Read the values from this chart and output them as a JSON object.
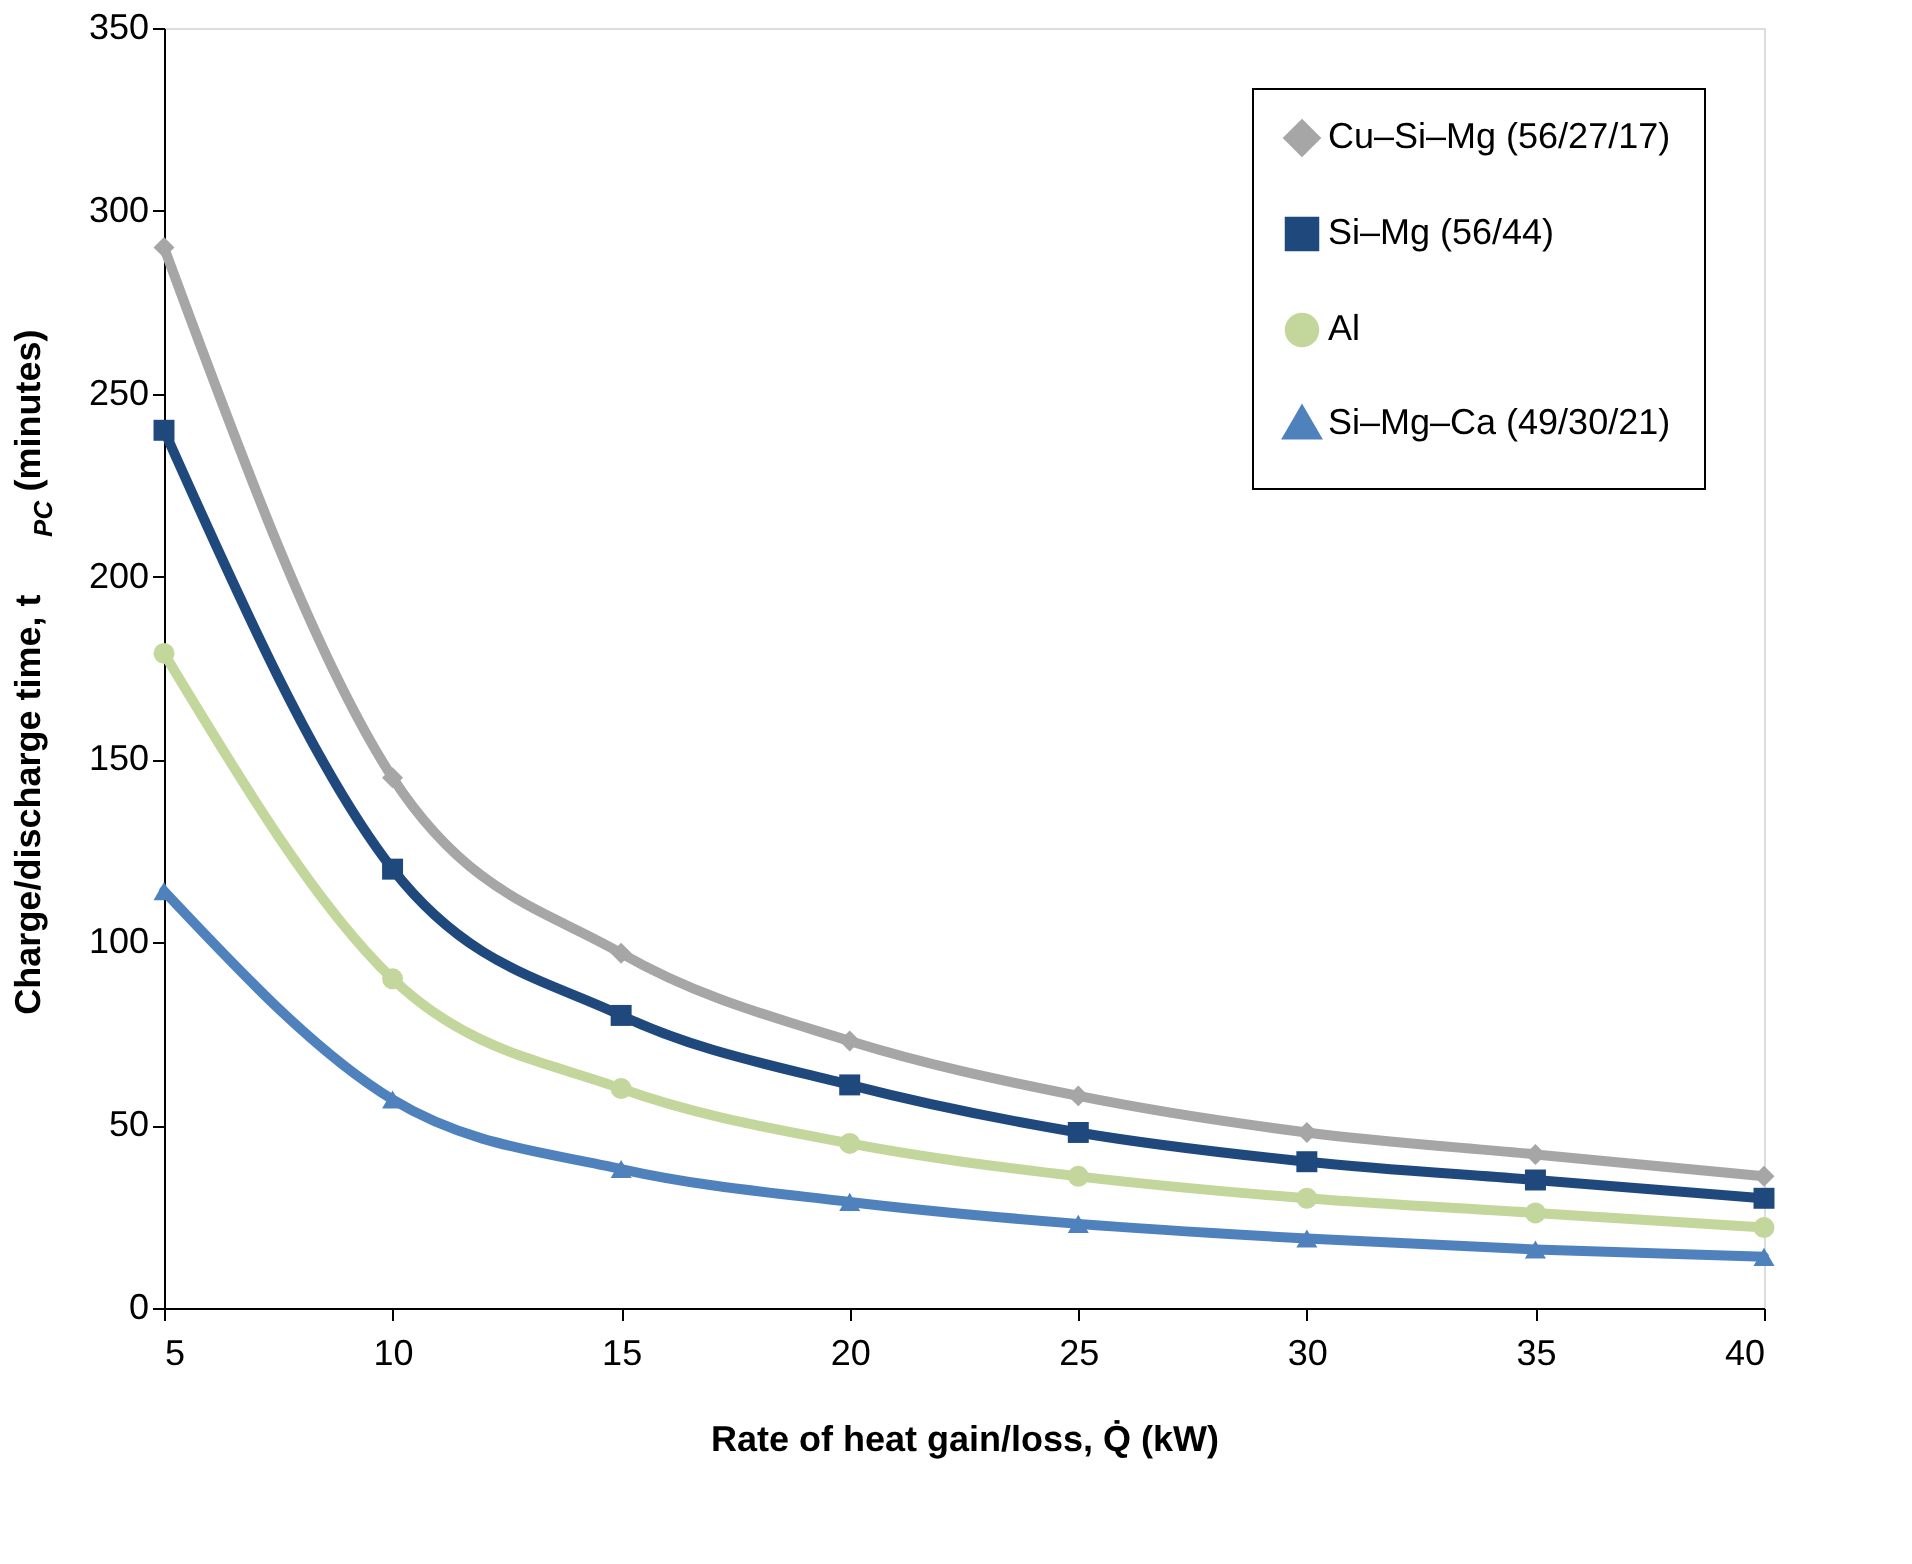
{
  "chart_data": {
    "type": "line",
    "xlabel": "Rate of heat gain/loss,  Q̇  (kW)",
    "ylabel": "Charge/discharge  time, t$_{PC}$ (minutes)",
    "x": [
      5,
      10,
      15,
      20,
      25,
      30,
      35,
      40
    ],
    "series": [
      {
        "name": "Cu–Si–Mg (56/27/17)",
        "color": "#a6a6a6",
        "marker": "diamond",
        "values": [
          290,
          145,
          97,
          73,
          58,
          48,
          42,
          36
        ]
      },
      {
        "name": "Si–Mg (56/44)",
        "color": "#1f497d",
        "marker": "square",
        "values": [
          240,
          120,
          80,
          61,
          48,
          40,
          35,
          30
        ]
      },
      {
        "name": "Al",
        "color": "#c3d69b",
        "marker": "circle",
        "values": [
          179,
          90,
          60,
          45,
          36,
          30,
          26,
          22
        ]
      },
      {
        "name": "Si–Mg–Ca (49/30/21)",
        "color": "#4f81bd",
        "marker": "triangle",
        "values": [
          114,
          57,
          38,
          29,
          23,
          19,
          16,
          14
        ]
      }
    ],
    "xlim": [
      5,
      40
    ],
    "xticks": [
      5,
      10,
      15,
      20,
      25,
      30,
      35,
      40
    ],
    "ylim": [
      0,
      350
    ],
    "yticks": [
      0,
      50,
      100,
      150,
      200,
      250,
      300,
      350
    ],
    "grid": false,
    "legend": "top right",
    "line_style": "solid"
  }
}
